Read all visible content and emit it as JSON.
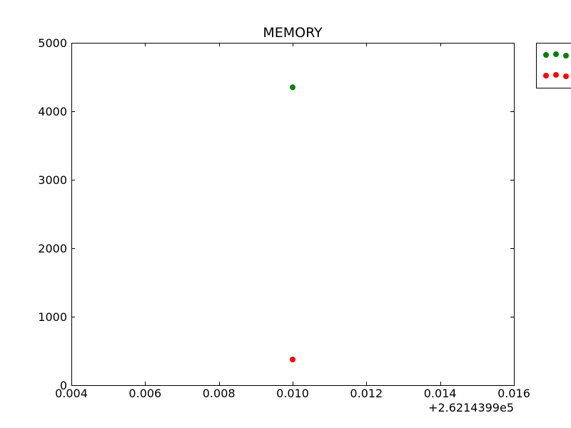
{
  "chart_data": {
    "type": "scatter",
    "title": "MEMORY",
    "xlabel": "",
    "ylabel": "",
    "x_offset_label": "+2.6214399e5",
    "xlim": [
      0.004,
      0.016
    ],
    "ylim": [
      0,
      5000
    ],
    "x_ticks": [
      0.004,
      0.006,
      0.008,
      0.01,
      0.012,
      0.014,
      0.016
    ],
    "x_tick_labels": [
      "0.004",
      "0.006",
      "0.008",
      "0.010",
      "0.012",
      "0.014",
      "0.016"
    ],
    "y_ticks": [
      0,
      1000,
      2000,
      3000,
      4000,
      5000
    ],
    "y_tick_labels": [
      "0",
      "1000",
      "2000",
      "3000",
      "4000",
      "5000"
    ],
    "grid": false,
    "legend": {
      "placement": "outside-top-right"
    },
    "series": [
      {
        "color": "#008000",
        "points": [
          {
            "x": 0.01,
            "y": 4350
          }
        ]
      },
      {
        "color": "#ff0000",
        "points": [
          {
            "x": 0.01,
            "y": 375
          }
        ]
      }
    ]
  }
}
